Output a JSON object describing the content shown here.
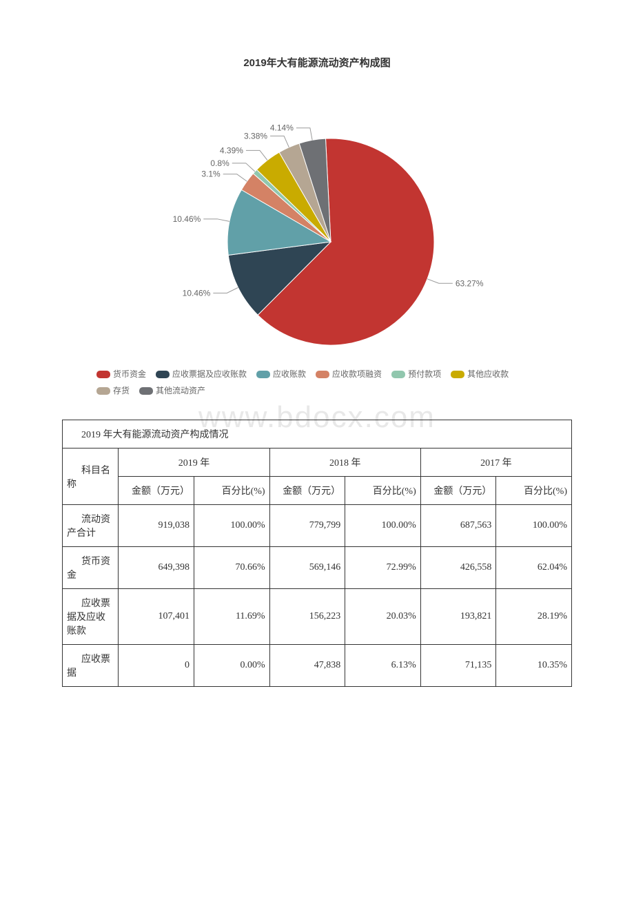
{
  "chart": {
    "title": "2019年大有能源流动资产构成图",
    "type": "pie",
    "radius": 150,
    "background_color": "#ffffff",
    "label_fontsize": 12,
    "label_color": "#666666",
    "slices": [
      {
        "name": "货币资金",
        "value": 63.27,
        "label": "63.27%",
        "color": "#c23531"
      },
      {
        "name": "应收票据及应收账款",
        "value": 10.46,
        "label": "10.46%",
        "color": "#2f4554"
      },
      {
        "name": "应收账款",
        "value": 10.46,
        "label": "10.46%",
        "color": "#61a0a8"
      },
      {
        "name": "应收款项融资",
        "value": 3.1,
        "label": "3.1%",
        "color": "#d48265"
      },
      {
        "name": "预付款项",
        "value": 0.8,
        "label": "0.8%",
        "color": "#91c7ae"
      },
      {
        "name": "其他应收款",
        "value": 4.39,
        "label": "4.39%",
        "color": "#c9ab00"
      },
      {
        "name": "存货",
        "value": 3.38,
        "label": "3.38%",
        "color": "#b5a693"
      },
      {
        "name": "其他流动资产",
        "value": 4.14,
        "label": "4.14%",
        "color": "#6e7074"
      }
    ],
    "legend_items": [
      {
        "label": "货币资金",
        "color": "#c23531"
      },
      {
        "label": "应收票据及应收账款",
        "color": "#2f4554"
      },
      {
        "label": "应收账款",
        "color": "#61a0a8"
      },
      {
        "label": "应收款项融资",
        "color": "#d48265"
      },
      {
        "label": "预付款项",
        "color": "#91c7ae"
      },
      {
        "label": "其他应收款",
        "color": "#c9ab00"
      },
      {
        "label": "存货",
        "color": "#b5a693"
      },
      {
        "label": "其他流动资产",
        "color": "#6e7074"
      }
    ]
  },
  "watermark": "www.bdocx.com",
  "table": {
    "title": "2019 年大有能源流动资产构成情况",
    "row_header_label": "科目名称",
    "year_groups": [
      "2019 年",
      "2018 年",
      "2017 年"
    ],
    "sub_headers": {
      "amount": "金额（万元）",
      "percent": "百分比(%)"
    },
    "rows": [
      {
        "name": "流动资产合计",
        "cells": [
          "919,038",
          "100.00%",
          "779,799",
          "100.00%",
          "687,563",
          "100.00%"
        ]
      },
      {
        "name": "货币资金",
        "cells": [
          "649,398",
          "70.66%",
          "569,146",
          "72.99%",
          "426,558",
          "62.04%"
        ]
      },
      {
        "name": "应收票据及应收账款",
        "cells": [
          "107,401",
          "11.69%",
          "156,223",
          "20.03%",
          "193,821",
          "28.19%"
        ]
      },
      {
        "name": "应收票据",
        "cells": [
          "0",
          "0.00%",
          "47,838",
          "6.13%",
          "71,135",
          "10.35%"
        ]
      }
    ]
  }
}
